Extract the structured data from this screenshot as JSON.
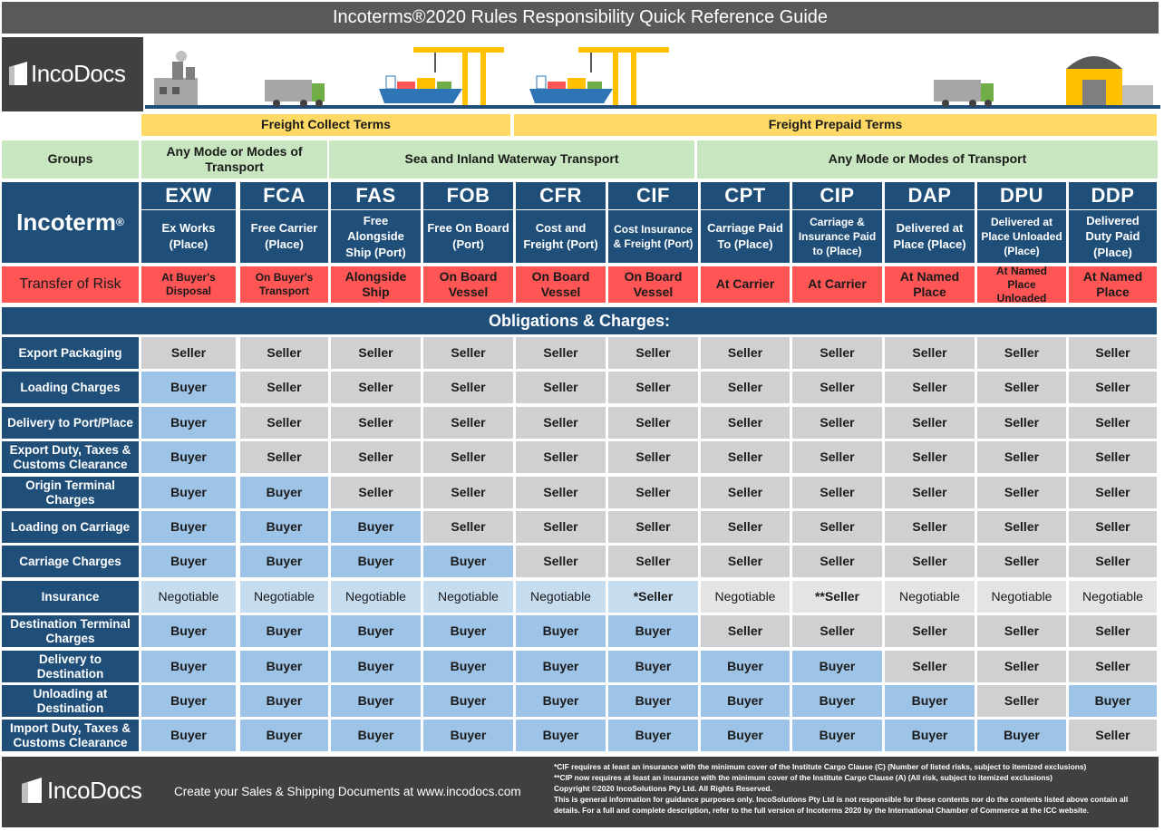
{
  "title": "Incoterms®2020 Rules Responsibility Quick Reference Guide",
  "brand": "IncoDocs",
  "freight": {
    "collect": "Freight Collect Terms",
    "prepaid": "Freight Prepaid Terms"
  },
  "groups_label": "Groups",
  "groups": [
    {
      "label": "Any Mode or Modes of Transport"
    },
    {
      "label": "Sea and Inland Waterway Transport"
    },
    {
      "label": "Any Mode or Modes of Transport"
    }
  ],
  "incoterm_label": "Incoterm",
  "incoterm_reg": "®",
  "risk_label": "Transfer of Risk",
  "terms": [
    {
      "code": "EXW",
      "desc": "Ex Works (Place)",
      "risk": "At Buyer's Disposal"
    },
    {
      "code": "FCA",
      "desc": "Free Carrier (Place)",
      "risk": "On Buyer's Transport"
    },
    {
      "code": "FAS",
      "desc": "Free Alongside Ship (Port)",
      "risk": "Alongside Ship"
    },
    {
      "code": "FOB",
      "desc": "Free On Board (Port)",
      "risk": "On Board Vessel"
    },
    {
      "code": "CFR",
      "desc": "Cost and Freight (Port)",
      "risk": "On Board Vessel"
    },
    {
      "code": "CIF",
      "desc": "Cost Insurance & Freight (Port)",
      "risk": "On Board Vessel"
    },
    {
      "code": "CPT",
      "desc": "Carriage Paid To (Place)",
      "risk": "At Carrier"
    },
    {
      "code": "CIP",
      "desc": "Carriage & Insurance Paid to (Place)",
      "risk": "At Carrier"
    },
    {
      "code": "DAP",
      "desc": "Delivered at Place (Place)",
      "risk": "At Named Place"
    },
    {
      "code": "DPU",
      "desc": "Delivered at Place Unloaded (Place)",
      "risk": "At Named Place Unloaded"
    },
    {
      "code": "DDP",
      "desc": "Delivered Duty Paid (Place)",
      "risk": "At Named Place"
    }
  ],
  "obligations_title": "Obligations & Charges:",
  "rows": [
    {
      "label": "Export Packaging",
      "values": [
        "Seller",
        "Seller",
        "Seller",
        "Seller",
        "Seller",
        "Seller",
        "Seller",
        "Seller",
        "Seller",
        "Seller",
        "Seller"
      ]
    },
    {
      "label": "Loading Charges",
      "values": [
        "Buyer",
        "Seller",
        "Seller",
        "Seller",
        "Seller",
        "Seller",
        "Seller",
        "Seller",
        "Seller",
        "Seller",
        "Seller"
      ]
    },
    {
      "label": "Delivery to Port/Place",
      "values": [
        "Buyer",
        "Seller",
        "Seller",
        "Seller",
        "Seller",
        "Seller",
        "Seller",
        "Seller",
        "Seller",
        "Seller",
        "Seller"
      ]
    },
    {
      "label": "Export Duty, Taxes & Customs Clearance",
      "values": [
        "Buyer",
        "Seller",
        "Seller",
        "Seller",
        "Seller",
        "Seller",
        "Seller",
        "Seller",
        "Seller",
        "Seller",
        "Seller"
      ]
    },
    {
      "label": "Origin Terminal Charges",
      "values": [
        "Buyer",
        "Buyer",
        "Seller",
        "Seller",
        "Seller",
        "Seller",
        "Seller",
        "Seller",
        "Seller",
        "Seller",
        "Seller"
      ]
    },
    {
      "label": "Loading on Carriage",
      "values": [
        "Buyer",
        "Buyer",
        "Buyer",
        "Seller",
        "Seller",
        "Seller",
        "Seller",
        "Seller",
        "Seller",
        "Seller",
        "Seller"
      ]
    },
    {
      "label": "Carriage Charges",
      "values": [
        "Buyer",
        "Buyer",
        "Buyer",
        "Buyer",
        "Seller",
        "Seller",
        "Seller",
        "Seller",
        "Seller",
        "Seller",
        "Seller"
      ]
    },
    {
      "label": "Insurance",
      "values": [
        "Negotiable",
        "Negotiable",
        "Negotiable",
        "Negotiable",
        "Negotiable",
        "*Seller",
        "Negotiable",
        "**Seller",
        "Negotiable",
        "Negotiable",
        "Negotiable"
      ]
    },
    {
      "label": "Destination Terminal Charges",
      "values": [
        "Buyer",
        "Buyer",
        "Buyer",
        "Buyer",
        "Buyer",
        "Buyer",
        "Seller",
        "Seller",
        "Seller",
        "Seller",
        "Seller"
      ]
    },
    {
      "label": "Delivery to Destination",
      "values": [
        "Buyer",
        "Buyer",
        "Buyer",
        "Buyer",
        "Buyer",
        "Buyer",
        "Buyer",
        "Buyer",
        "Seller",
        "Seller",
        "Seller"
      ]
    },
    {
      "label": "Unloading at Destination",
      "values": [
        "Buyer",
        "Buyer",
        "Buyer",
        "Buyer",
        "Buyer",
        "Buyer",
        "Buyer",
        "Buyer",
        "Buyer",
        "Seller",
        "Buyer"
      ]
    },
    {
      "label": "Import Duty, Taxes & Customs Clearance",
      "values": [
        "Buyer",
        "Buyer",
        "Buyer",
        "Buyer",
        "Buyer",
        "Buyer",
        "Buyer",
        "Buyer",
        "Buyer",
        "Buyer",
        "Seller"
      ]
    }
  ],
  "footer": {
    "tagline": "Create your Sales & Shipping Documents at www.incodocs.com",
    "notes": [
      "*CIF requires at least an insurance with the minimum cover of the Institute Cargo Clause (C) (Number of listed risks, subject to itemized exclusions)",
      "**CIP now requires at least an insurance with the minimum cover of the Institute Cargo Clause (A) (All risk, subject to itemized exclusions)",
      "Copyright ©2020 IncoSolutions Pty Ltd. All Rights Reserved.",
      "This is general information for guidance purposes only. IncoSolutions Pty Ltd is not responsible for these contents nor do the contents listed above contain all details. For a full and complete description, refer to the full version of Incoterms 2020 by the International Chamber of Commerce at the ICC website."
    ]
  },
  "colors": {
    "navy": "#1f4e79",
    "seller_grey": "#d0d0d0",
    "buyer_blue": "#9dc3e6",
    "risk_red": "#ff5555",
    "group_green": "#c8e6bf",
    "freight_yellow": "#ffd966"
  }
}
